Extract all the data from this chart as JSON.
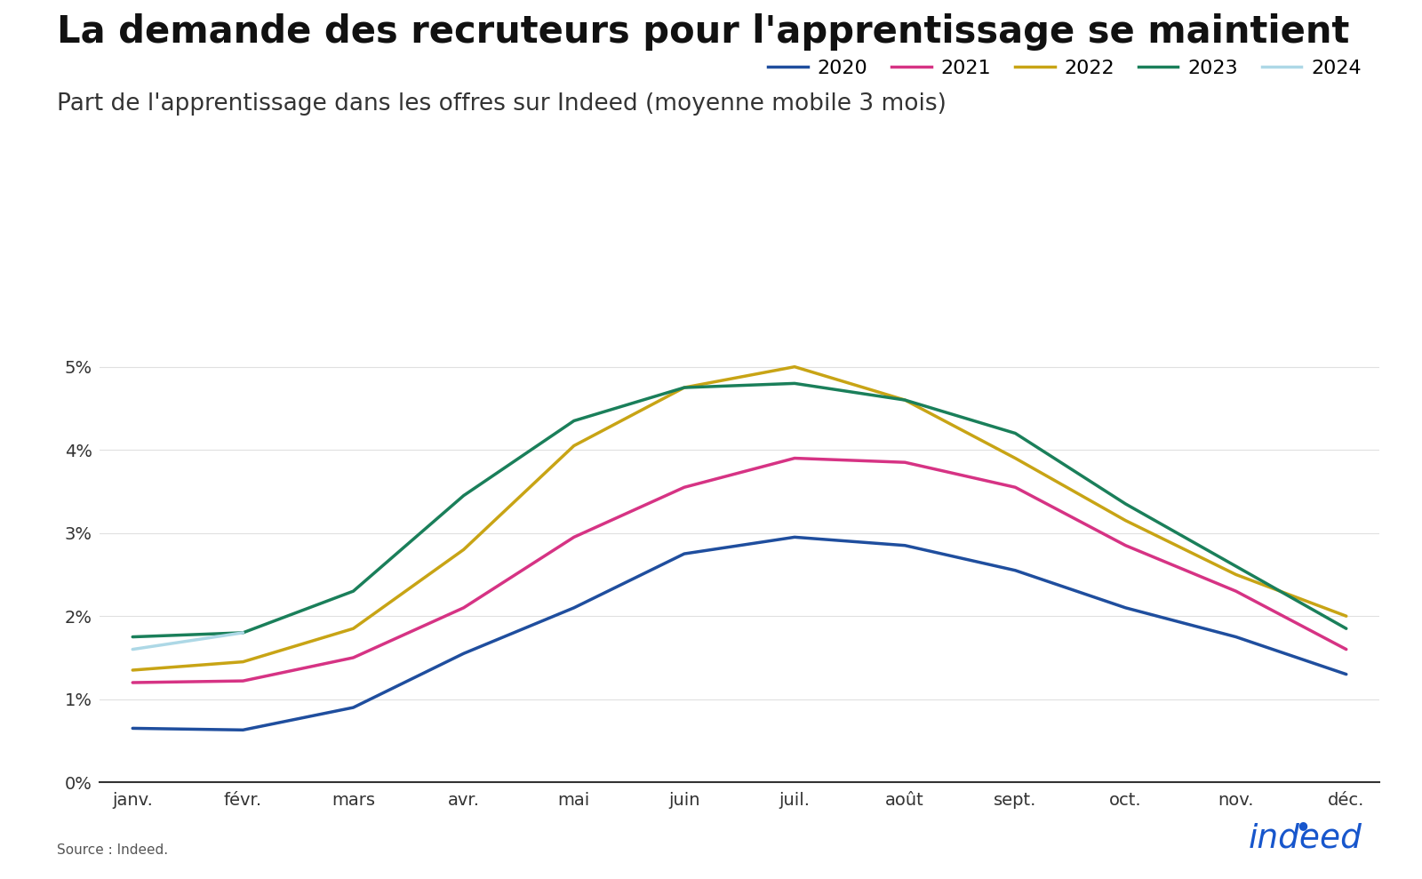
{
  "title": "La demande des recruteurs pour l'apprentissage se maintient",
  "subtitle": "Part de l'apprentissage dans les offres sur Indeed (moyenne mobile 3 mois)",
  "source": "Source : Indeed.",
  "months": [
    "janv.",
    "févr.",
    "mars",
    "avr.",
    "mai",
    "juin",
    "juil.",
    "août",
    "sept.",
    "oct.",
    "nov.",
    "déc."
  ],
  "series": {
    "2020": {
      "color": "#1f4e9e",
      "values": [
        0.65,
        0.63,
        0.9,
        1.55,
        2.1,
        2.75,
        2.95,
        2.85,
        2.55,
        2.1,
        1.75,
        1.3
      ]
    },
    "2021": {
      "color": "#d63384",
      "values": [
        1.2,
        1.22,
        1.5,
        2.1,
        2.95,
        3.55,
        3.9,
        3.85,
        3.55,
        2.85,
        2.3,
        1.6
      ]
    },
    "2022": {
      "color": "#c8a415",
      "values": [
        1.35,
        1.45,
        1.85,
        2.8,
        4.05,
        4.75,
        5.0,
        4.6,
        3.9,
        3.15,
        2.5,
        2.0
      ]
    },
    "2023": {
      "color": "#1a7f5a",
      "values": [
        1.75,
        1.8,
        2.3,
        3.45,
        4.35,
        4.75,
        4.8,
        4.6,
        4.2,
        3.35,
        2.6,
        1.85
      ]
    },
    "2024": {
      "color": "#add8e6",
      "values": [
        1.6,
        1.8,
        null,
        null,
        null,
        null,
        null,
        null,
        null,
        null,
        null,
        null
      ]
    }
  },
  "ylim": [
    0,
    5.5
  ],
  "yticks": [
    0,
    1,
    2,
    3,
    4,
    5
  ],
  "ytick_labels": [
    "0%",
    "1%",
    "2%",
    "3%",
    "4%",
    "5%"
  ],
  "background_color": "#ffffff",
  "title_fontsize": 30,
  "subtitle_fontsize": 19,
  "axis_fontsize": 14,
  "legend_fontsize": 16,
  "line_width": 2.5
}
